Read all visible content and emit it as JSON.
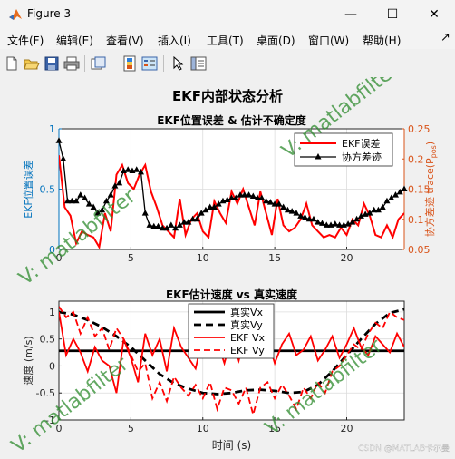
{
  "window": {
    "title": "Figure 3",
    "minimize_label": "—",
    "maximize_label": "☐",
    "close_label": "✕"
  },
  "menu": {
    "items": [
      "文件(F)",
      "编辑(E)",
      "查看(V)",
      "插入(I)",
      "工具(T)",
      "桌面(D)",
      "窗口(W)",
      "帮助(H)"
    ],
    "dock_arrow": "↗"
  },
  "toolbar": {
    "icons": [
      "new-figure-icon",
      "open-file-icon",
      "save-icon",
      "print-icon",
      "link-plot-icon",
      "insert-colorbar-icon",
      "insert-legend-icon",
      "select-pointer-icon",
      "property-inspector-icon"
    ]
  },
  "figure": {
    "suptitle": "EKF内部状态分析",
    "watermark_text": "V: matlabfilter",
    "csdn_watermark": "CSDN @MATLAB卡尔曼"
  },
  "chart_data": [
    {
      "type": "line",
      "title": "EKF位置误差 & 估计不确定度",
      "xlabel": "",
      "ylabel_left": "EKF位置误差",
      "ylabel_right": "协方差迹 trace(P",
      "ylabel_right_sub": "pos",
      "ylabel_right_tail": ")",
      "xlim": [
        0,
        24
      ],
      "ylim_left": [
        0,
        1
      ],
      "ylim_right": [
        0.05,
        0.25
      ],
      "xticks": [
        0,
        5,
        10,
        15,
        20
      ],
      "yticks_left": [
        0,
        0.5,
        1
      ],
      "yticks_right": [
        0.05,
        0.1,
        0.15,
        0.2,
        0.25
      ],
      "left_axis_color": "#0072bd",
      "right_axis_color": "#d95319",
      "legend_position": "top-right",
      "series": [
        {
          "name": "EKF误差",
          "axis": "left",
          "color": "#ff0000",
          "x": [
            0,
            0.4,
            0.8,
            1.2,
            1.6,
            2.0,
            2.4,
            2.8,
            3.2,
            3.6,
            4.0,
            4.4,
            4.8,
            5.2,
            5.6,
            6.0,
            6.4,
            6.8,
            7.2,
            7.6,
            8.0,
            8.4,
            8.8,
            9.2,
            9.6,
            10.0,
            10.4,
            10.8,
            11.2,
            11.6,
            12.0,
            12.4,
            12.8,
            13.2,
            13.6,
            14.0,
            14.4,
            14.8,
            15.2,
            15.6,
            16.0,
            16.4,
            16.8,
            17.2,
            17.6,
            18.0,
            18.4,
            18.8,
            19.2,
            19.6,
            20.0,
            20.4,
            20.8,
            21.2,
            21.6,
            22.0,
            22.4,
            22.8,
            23.2,
            23.6,
            24.0
          ],
          "y": [
            0.78,
            0.35,
            0.28,
            0.05,
            0.15,
            0.12,
            0.1,
            0.02,
            0.3,
            0.15,
            0.62,
            0.7,
            0.55,
            0.5,
            0.62,
            0.7,
            0.48,
            0.35,
            0.2,
            0.15,
            0.1,
            0.42,
            0.12,
            0.25,
            0.3,
            0.15,
            0.1,
            0.4,
            0.3,
            0.22,
            0.48,
            0.38,
            0.5,
            0.35,
            0.2,
            0.48,
            0.3,
            0.12,
            0.42,
            0.2,
            0.15,
            0.18,
            0.25,
            0.38,
            0.2,
            0.15,
            0.1,
            0.12,
            0.1,
            0.18,
            0.12,
            0.25,
            0.2,
            0.38,
            0.28,
            0.12,
            0.1,
            0.2,
            0.1,
            0.25,
            0.3
          ]
        },
        {
          "name": "协方差迹",
          "axis": "right",
          "color": "#000000",
          "marker": "triangle",
          "x": [
            0,
            0.3,
            0.6,
            0.9,
            1.2,
            1.5,
            1.8,
            2.1,
            2.4,
            2.7,
            3.0,
            3.3,
            3.6,
            3.9,
            4.2,
            4.5,
            4.8,
            5.1,
            5.4,
            5.7,
            6.0,
            6.3,
            6.6,
            6.9,
            7.2,
            7.5,
            7.8,
            8.1,
            8.4,
            8.7,
            9.0,
            9.3,
            9.6,
            9.9,
            10.2,
            10.5,
            10.8,
            11.1,
            11.4,
            11.7,
            12.0,
            12.3,
            12.6,
            12.9,
            13.2,
            13.5,
            13.8,
            14.1,
            14.4,
            14.7,
            15.0,
            15.3,
            15.6,
            15.9,
            16.2,
            16.5,
            16.8,
            17.1,
            17.4,
            17.7,
            18.0,
            18.3,
            18.6,
            18.9,
            19.2,
            19.5,
            19.8,
            20.1,
            20.4,
            20.7,
            21.0,
            21.3,
            21.6,
            21.9,
            22.2,
            22.5,
            22.8,
            23.1,
            23.4,
            23.7,
            24.0
          ],
          "y": [
            0.23,
            0.2,
            0.13,
            0.13,
            0.13,
            0.14,
            0.135,
            0.125,
            0.12,
            0.11,
            0.115,
            0.13,
            0.14,
            0.155,
            0.16,
            0.18,
            0.182,
            0.18,
            0.182,
            0.178,
            0.11,
            0.09,
            0.088,
            0.088,
            0.085,
            0.085,
            0.09,
            0.085,
            0.09,
            0.095,
            0.095,
            0.1,
            0.1,
            0.11,
            0.115,
            0.12,
            0.12,
            0.125,
            0.13,
            0.132,
            0.135,
            0.135,
            0.14,
            0.14,
            0.14,
            0.138,
            0.135,
            0.135,
            0.13,
            0.128,
            0.125,
            0.125,
            0.12,
            0.115,
            0.113,
            0.11,
            0.105,
            0.103,
            0.1,
            0.1,
            0.095,
            0.093,
            0.09,
            0.09,
            0.092,
            0.09,
            0.09,
            0.092,
            0.095,
            0.1,
            0.105,
            0.108,
            0.11,
            0.115,
            0.115,
            0.12,
            0.13,
            0.135,
            0.14,
            0.145,
            0.15
          ]
        }
      ]
    },
    {
      "type": "line",
      "title": "EKF估计速度 vs 真实速度",
      "xlabel": "时间 (s)",
      "ylabel": "速度 (m/s)",
      "xlim": [
        0,
        24
      ],
      "ylim": [
        -1,
        1.2
      ],
      "xticks": [
        0,
        5,
        10,
        15,
        20
      ],
      "yticks": [
        -1,
        -0.5,
        0,
        0.5,
        1
      ],
      "legend_position": "top-center",
      "series": [
        {
          "name": "真实Vx",
          "color": "#000000",
          "style": "solid-thick",
          "x": [
            0,
            24
          ],
          "y": [
            0.28,
            0.28
          ]
        },
        {
          "name": "真实Vy",
          "color": "#000000",
          "style": "dashed-thick",
          "x": [
            0,
            1,
            2,
            3,
            4,
            5,
            6,
            7,
            8,
            9,
            10,
            11,
            12,
            13,
            14,
            15,
            16,
            17,
            18,
            19,
            20,
            21,
            22,
            23,
            24
          ],
          "y": [
            1.0,
            0.95,
            0.85,
            0.72,
            0.55,
            0.35,
            0.1,
            -0.15,
            -0.32,
            -0.42,
            -0.5,
            -0.52,
            -0.5,
            -0.45,
            -0.44,
            -0.46,
            -0.5,
            -0.48,
            -0.35,
            -0.1,
            0.2,
            0.5,
            0.78,
            0.98,
            1.05
          ]
        },
        {
          "name": "EKF Vx",
          "color": "#ff0000",
          "style": "solid",
          "x": [
            0,
            0.5,
            1,
            1.5,
            2,
            2.5,
            3,
            3.5,
            4,
            4.5,
            5,
            5.5,
            6,
            6.5,
            7,
            7.5,
            8,
            8.5,
            9,
            9.5,
            10,
            10.5,
            11,
            11.5,
            12,
            12.5,
            13,
            13.5,
            14,
            14.5,
            15,
            15.5,
            16,
            16.5,
            17,
            17.5,
            18,
            18.5,
            19,
            19.5,
            20,
            20.5,
            21,
            21.5,
            22,
            22.5,
            23,
            23.5,
            24
          ],
          "y": [
            1.0,
            0.2,
            0.5,
            0.25,
            -0.1,
            0.35,
            0.1,
            0.0,
            -0.5,
            0.5,
            0.15,
            -0.3,
            0.6,
            0.2,
            0.5,
            -0.1,
            0.7,
            0.35,
            0.15,
            -0.05,
            0.55,
            0.3,
            0.45,
            0.05,
            0.55,
            0.1,
            0.65,
            0.25,
            0.2,
            0.5,
            0.05,
            0.4,
            0.6,
            0.2,
            0.3,
            0.55,
            0.1,
            0.3,
            0.55,
            0.15,
            0.4,
            0.7,
            0.35,
            0.2,
            0.55,
            0.4,
            0.25,
            0.6,
            0.35
          ]
        },
        {
          "name": "EKF Vy",
          "color": "#ff0000",
          "style": "dashed",
          "x": [
            0,
            0.5,
            1,
            1.5,
            2,
            2.5,
            3,
            3.5,
            4,
            4.5,
            5,
            5.5,
            6,
            6.5,
            7,
            7.5,
            8,
            8.5,
            9,
            9.5,
            10,
            10.5,
            11,
            11.5,
            12,
            12.5,
            13,
            13.5,
            14,
            14.5,
            15,
            15.5,
            16,
            16.5,
            17,
            17.5,
            18,
            18.5,
            19,
            19.5,
            20,
            20.5,
            21,
            21.5,
            22,
            22.5,
            23,
            23.5,
            24
          ],
          "y": [
            1.1,
            0.9,
            1.0,
            0.6,
            0.9,
            0.55,
            0.7,
            0.3,
            0.7,
            0.5,
            0.2,
            -0.1,
            0.05,
            -0.6,
            -0.3,
            -0.65,
            -0.2,
            -0.4,
            -0.55,
            -0.35,
            -0.6,
            -0.3,
            -0.8,
            -0.4,
            -0.45,
            -0.7,
            -0.4,
            -0.9,
            -0.4,
            -0.3,
            -0.6,
            -0.35,
            -0.55,
            -0.8,
            -0.4,
            -0.6,
            -0.3,
            -0.5,
            -0.1,
            0.0,
            0.2,
            0.4,
            0.3,
            0.6,
            0.8,
            0.7,
            1.0,
            0.9,
            0.85
          ]
        }
      ]
    }
  ]
}
